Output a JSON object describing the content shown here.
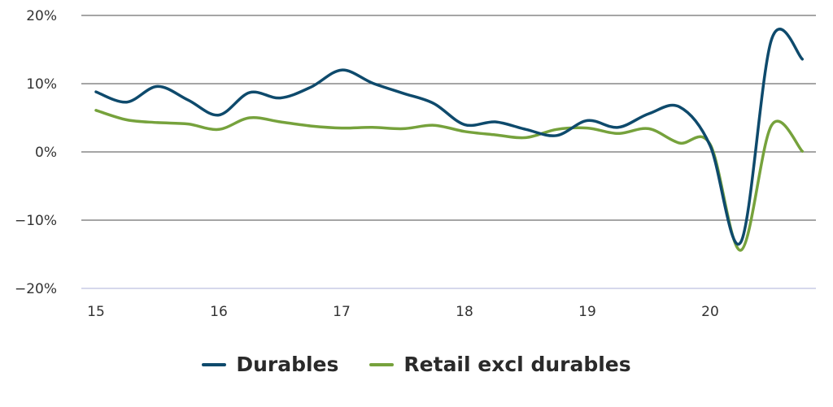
{
  "chart_data": {
    "type": "line",
    "title": "",
    "xlabel": "",
    "ylabel": "",
    "xlim": [
      15,
      20.8
    ],
    "ylim": [
      -20,
      20
    ],
    "y_ticks": [
      20,
      10,
      0,
      -10,
      -20
    ],
    "y_tick_labels": [
      "20%",
      "10%",
      "0%",
      "−10%",
      "−20%"
    ],
    "x_ticks": [
      15,
      16,
      17,
      18,
      19,
      20
    ],
    "x_tick_labels": [
      "15",
      "16",
      "17",
      "18",
      "19",
      "20"
    ],
    "grid": "horizontal",
    "legend_position": "bottom-center",
    "series": [
      {
        "name": "Durables",
        "color": "#0e4a6c",
        "x": [
          15.0,
          15.25,
          15.5,
          15.75,
          16.0,
          16.25,
          16.5,
          16.75,
          17.0,
          17.25,
          17.5,
          17.75,
          18.0,
          18.25,
          18.5,
          18.75,
          19.0,
          19.25,
          19.5,
          19.75,
          20.0,
          20.25,
          20.5,
          20.75
        ],
        "y": [
          8.8,
          7.3,
          9.6,
          7.6,
          5.4,
          8.7,
          7.9,
          9.5,
          12.0,
          10.1,
          8.6,
          7.1,
          4.0,
          4.4,
          3.3,
          2.4,
          4.6,
          3.6,
          5.6,
          6.6,
          0.9,
          -13.2,
          16.5,
          13.6
        ]
      },
      {
        "name": "Retail excl durables",
        "color": "#76a23c",
        "x": [
          15.0,
          15.25,
          15.5,
          15.75,
          16.0,
          16.25,
          16.5,
          16.75,
          17.0,
          17.25,
          17.5,
          17.75,
          18.0,
          18.25,
          18.5,
          18.75,
          19.0,
          19.25,
          19.5,
          19.75,
          20.0,
          20.25,
          20.5,
          20.75
        ],
        "y": [
          6.1,
          4.7,
          4.3,
          4.1,
          3.3,
          5.0,
          4.4,
          3.8,
          3.5,
          3.6,
          3.4,
          3.9,
          3.0,
          2.5,
          2.1,
          3.3,
          3.5,
          2.7,
          3.4,
          1.3,
          1.1,
          -14.4,
          3.9,
          0.1
        ]
      }
    ]
  }
}
